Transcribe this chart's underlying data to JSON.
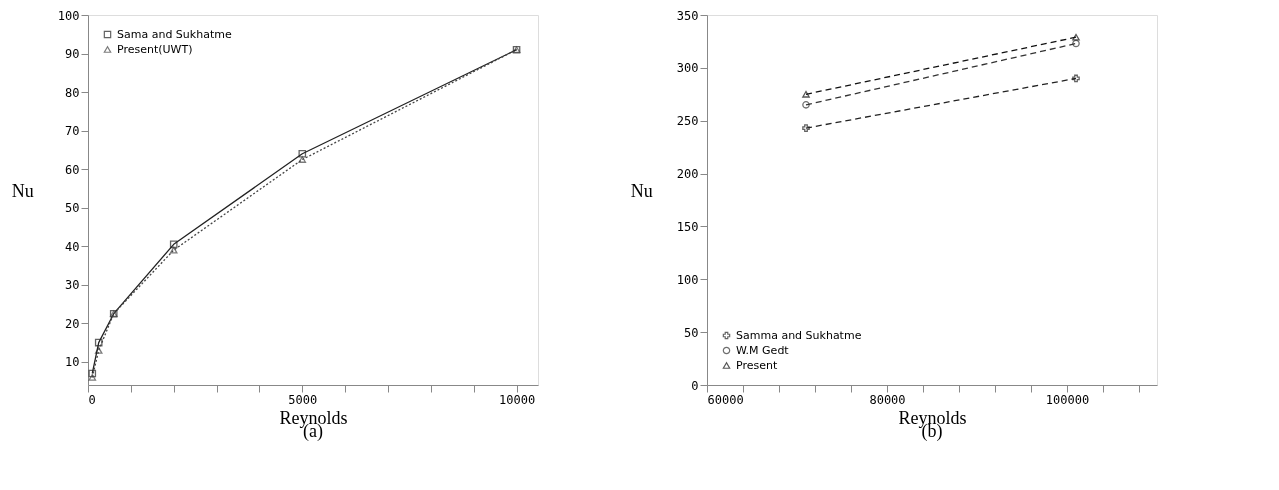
{
  "chart_data": [
    {
      "type": "line",
      "xlabel": "Reynolds",
      "ylabel": "Nu",
      "annotations": [
        "(a)"
      ],
      "xlim": [
        0,
        10500
      ],
      "xticks": [
        0,
        {
          "value": 1000,
          "label": null
        },
        {
          "value": 2000,
          "label": null
        },
        {
          "value": 3000,
          "label": null
        },
        {
          "value": 4000,
          "label": null
        },
        5000,
        {
          "value": 6000,
          "label": null
        },
        {
          "value": 7000,
          "label": null
        },
        {
          "value": 8000,
          "label": null
        },
        {
          "value": 9000,
          "label": null
        },
        10000
      ],
      "ylim": [
        4,
        100
      ],
      "yticks": [
        10,
        20,
        30,
        40,
        50,
        60,
        70,
        80,
        90,
        100
      ],
      "grid": false,
      "legend": "top left",
      "series": [
        {
          "name": "Sama and Sukhatme",
          "color": "#222222",
          "marker": "square",
          "line_style": "solid",
          "x": [
            100,
            250,
            600,
            2000,
            5000,
            10000
          ],
          "values": [
            7,
            15,
            22.5,
            40.5,
            64,
            91
          ]
        },
        {
          "name": "Present(UWT)",
          "color": "#444444",
          "marker": "triangle",
          "line_style": "dotted",
          "x": [
            100,
            250,
            600,
            2000,
            5000,
            10000
          ],
          "values": [
            6,
            13,
            22.5,
            39,
            62.5,
            91
          ]
        }
      ]
    },
    {
      "type": "line",
      "xlabel": "Reynolds",
      "ylabel": "Nu",
      "annotations": [
        "(b)"
      ],
      "xlim": [
        60000,
        110000
      ],
      "xticks": [
        60000,
        {
          "value": 64000,
          "label": null
        },
        {
          "value": 68000,
          "label": null
        },
        {
          "value": 72000,
          "label": null
        },
        {
          "value": 76000,
          "label": null
        },
        80000,
        {
          "value": 84000,
          "label": null
        },
        {
          "value": 88000,
          "label": null
        },
        {
          "value": 92000,
          "label": null
        },
        {
          "value": 96000,
          "label": null
        },
        100000,
        {
          "value": 104000,
          "label": null
        },
        {
          "value": 108000,
          "label": null
        }
      ],
      "ylim": [
        0,
        350
      ],
      "yticks": [
        0,
        50,
        100,
        150,
        200,
        250,
        300,
        350
      ],
      "grid": false,
      "legend": "bottom left",
      "series": [
        {
          "name": "Samma and Sukhatme",
          "color": "#222222",
          "marker": "cross",
          "line_style": "dashed",
          "x": [
            71000,
            101000
          ],
          "values": [
            243,
            290
          ]
        },
        {
          "name": "W.M Gedt",
          "color": "#333333",
          "marker": "circle",
          "line_style": "dashed",
          "x": [
            71000,
            101000
          ],
          "values": [
            265,
            323
          ]
        },
        {
          "name": "Present",
          "color": "#111111",
          "marker": "triangle",
          "line_style": "dashed",
          "x": [
            71000,
            101000
          ],
          "values": [
            275,
            329
          ]
        }
      ]
    }
  ]
}
